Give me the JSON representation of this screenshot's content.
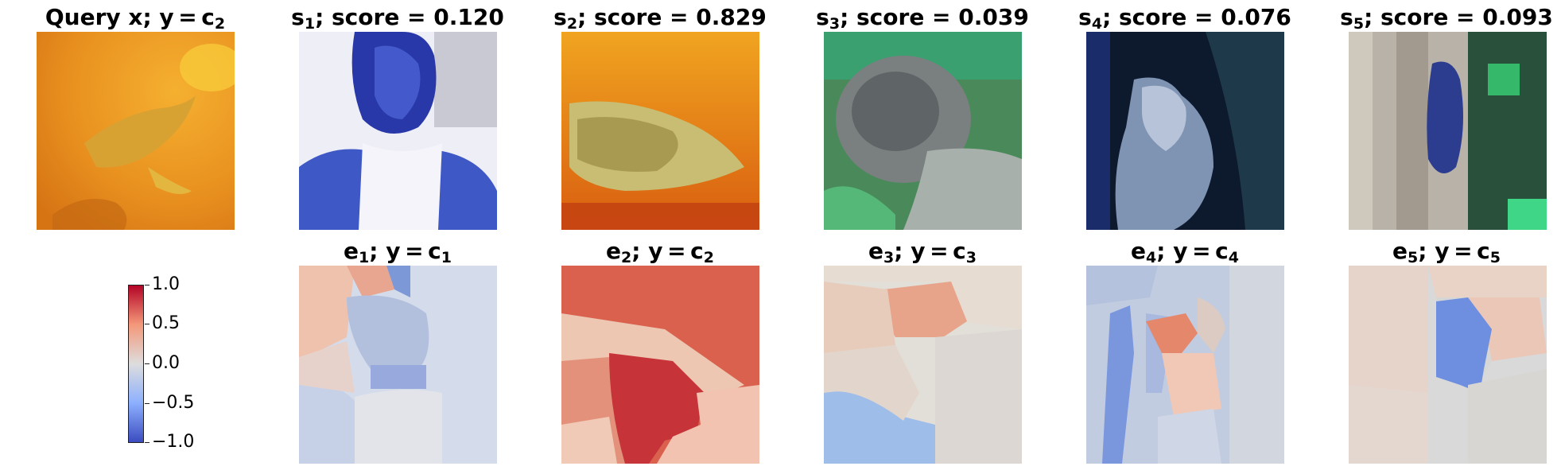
{
  "top_row": [
    {
      "id": "query",
      "title_main": "Query x; y = c",
      "title_sub": "2",
      "title_tail": ""
    },
    {
      "id": "s1",
      "title_main": "s",
      "title_sub": "1",
      "title_tail": "; score = 0.120"
    },
    {
      "id": "s2",
      "title_main": "s",
      "title_sub": "2",
      "title_tail": "; score = 0.829"
    },
    {
      "id": "s3",
      "title_main": "s",
      "title_sub": "3",
      "title_tail": "; score = 0.039"
    },
    {
      "id": "s4",
      "title_main": "s",
      "title_sub": "4",
      "title_tail": "; score = 0.076"
    },
    {
      "id": "s5",
      "title_main": "s",
      "title_sub": "5",
      "title_tail": "; score = 0.093"
    }
  ],
  "bottom_row": [
    {
      "id": "e1",
      "title_main": "e",
      "title_sub": "1",
      "title_mid": "; y = c",
      "title_sub2": "1"
    },
    {
      "id": "e2",
      "title_main": "e",
      "title_sub": "2",
      "title_mid": "; y = c",
      "title_sub2": "2"
    },
    {
      "id": "e3",
      "title_main": "e",
      "title_sub": "3",
      "title_mid": "; y = c",
      "title_sub2": "3"
    },
    {
      "id": "e4",
      "title_main": "e",
      "title_sub": "4",
      "title_mid": "; y = c",
      "title_sub2": "4"
    },
    {
      "id": "e5",
      "title_main": "e",
      "title_sub": "5",
      "title_mid": "; y = c",
      "title_sub2": "5"
    }
  ],
  "colorbar": {
    "colormap": "coolwarm",
    "min": -1.0,
    "max": 1.0,
    "ticks": [
      "1.0",
      "0.5",
      "0.0",
      "−0.5",
      "−1.0"
    ],
    "colors": {
      "high": "#b40426",
      "mid": "#dddddd",
      "low": "#3b4cc0"
    }
  }
}
